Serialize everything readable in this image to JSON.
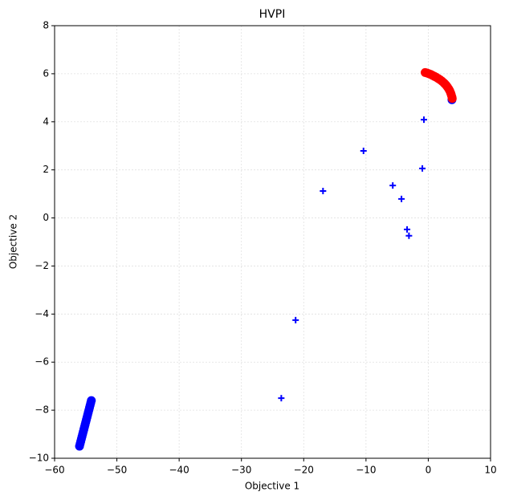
{
  "chart_data": {
    "type": "scatter",
    "title": "HVPI",
    "x_label": "Objective 1",
    "y_label": "Objective 2",
    "xlim": [
      -60,
      10
    ],
    "ylim": [
      -10,
      8
    ],
    "xticks": [
      {
        "value": -60,
        "label": "−60"
      },
      {
        "value": -50,
        "label": "−50"
      },
      {
        "value": -40,
        "label": "−40"
      },
      {
        "value": -30,
        "label": "−30"
      },
      {
        "value": -20,
        "label": "−20"
      },
      {
        "value": -10,
        "label": "−10"
      },
      0,
      10
    ],
    "yticks": [
      {
        "value": -10,
        "label": "−10"
      },
      {
        "value": -8,
        "label": "−8"
      },
      {
        "value": -6,
        "label": "−6"
      },
      {
        "value": -4,
        "label": "−4"
      },
      {
        "value": -2,
        "label": "−2"
      },
      0,
      2,
      4,
      6,
      8
    ],
    "grid": true,
    "series": [
      {
        "color": "#0000ff",
        "marker": "circle",
        "x": [
          -56.0,
          -55.9,
          -55.8,
          -55.7,
          -55.6,
          -55.5,
          -55.4,
          -55.3,
          -55.2,
          -55.1,
          -55.0,
          -54.9,
          -54.8,
          -54.7,
          -54.6,
          -54.5,
          -54.4,
          -54.3,
          -54.2,
          -54.1,
          3.8
        ],
        "values": [
          -9.5,
          -9.4,
          -9.3,
          -9.2,
          -9.1,
          -9.0,
          -8.9,
          -8.8,
          -8.7,
          -8.6,
          -8.5,
          -8.4,
          -8.3,
          -8.2,
          -8.1,
          -8.0,
          -7.9,
          -7.8,
          -7.7,
          -7.6,
          4.92
        ]
      },
      {
        "color": "#ff0000",
        "marker": "circle",
        "x": [
          -0.5,
          -0.2,
          0.1,
          0.4,
          0.7,
          1.0,
          1.3,
          1.6,
          1.9,
          2.2,
          2.5,
          2.7,
          2.9,
          3.1,
          3.3,
          3.45,
          3.6,
          3.7,
          3.8,
          3.85
        ],
        "values": [
          6.05,
          6.03,
          6.0,
          5.97,
          5.93,
          5.89,
          5.85,
          5.8,
          5.75,
          5.69,
          5.62,
          5.57,
          5.51,
          5.44,
          5.36,
          5.29,
          5.2,
          5.12,
          5.03,
          4.97
        ]
      },
      {
        "color": "#0000ff",
        "marker": "plus",
        "x": [
          -0.7,
          -10.4,
          -0.95,
          -16.9,
          -5.7,
          -4.3,
          -3.4,
          -3.1,
          -21.3,
          -23.6
        ],
        "values": [
          4.09,
          2.79,
          2.06,
          1.12,
          1.35,
          0.79,
          -0.48,
          -0.74,
          -4.25,
          -7.5
        ]
      }
    ]
  }
}
